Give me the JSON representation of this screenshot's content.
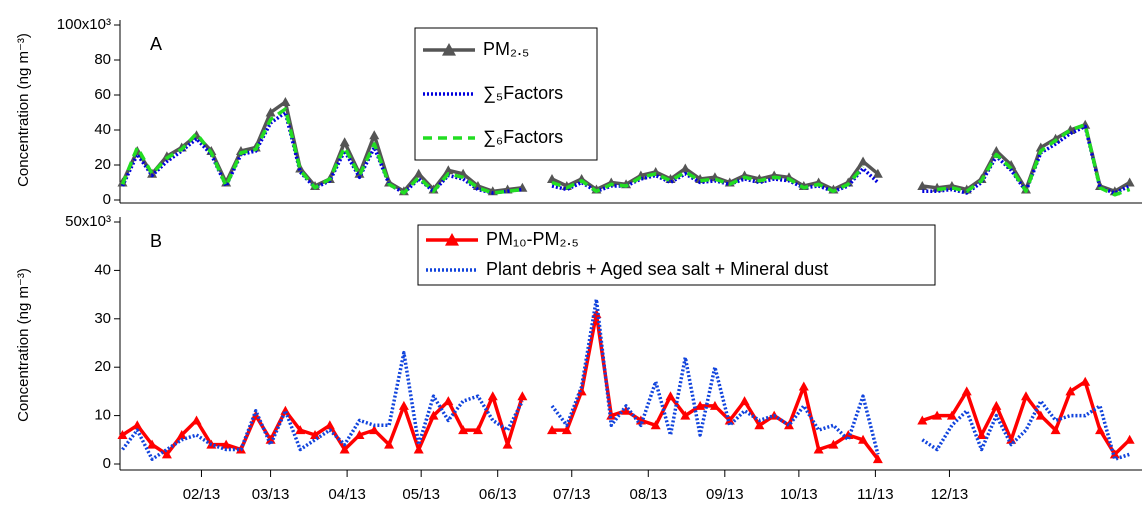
{
  "chart_data": [
    {
      "type": "line",
      "panel": "A",
      "y_label": "Concentration (ng m⁻³)",
      "x": [
        0,
        6,
        12,
        18,
        24,
        30,
        36,
        42,
        48,
        54,
        60,
        66,
        72,
        78,
        84,
        90,
        96,
        102,
        108,
        114,
        120,
        126,
        132,
        138,
        144,
        150,
        156,
        162,
        168,
        174,
        180,
        186,
        192,
        198,
        204,
        210,
        216,
        222,
        228,
        234,
        240,
        246,
        252,
        258,
        264,
        270,
        276,
        282,
        288,
        294,
        300,
        306,
        312,
        318,
        324,
        330,
        336,
        342,
        348,
        354,
        360,
        366,
        372,
        378,
        384,
        390,
        396,
        402,
        408
      ],
      "xlim": [
        -1,
        413
      ],
      "ylim": [
        0,
        100
      ],
      "yticks": [
        0,
        20,
        40,
        60,
        80,
        {
          "value": 100,
          "label": "100x10³"
        }
      ],
      "series": [
        {
          "name": "PM₂.₅",
          "color": "#555555",
          "style": "solid-triangle",
          "values": [
            10,
            28,
            15,
            25,
            30,
            37,
            28,
            10,
            28,
            30,
            50,
            56,
            18,
            8,
            12,
            33,
            15,
            37,
            10,
            5,
            15,
            6,
            17,
            15,
            8,
            5,
            6,
            7,
            null,
            12,
            8,
            12,
            6,
            10,
            9,
            14,
            16,
            12,
            18,
            12,
            13,
            10,
            14,
            12,
            14,
            13,
            8,
            10,
            6,
            10,
            22,
            15,
            null,
            null,
            8,
            7,
            8,
            6,
            12,
            28,
            20,
            6,
            30,
            35,
            40,
            43,
            8,
            5,
            10
          ]
        },
        {
          "name": "∑₅Factors",
          "color": "#0000dd",
          "style": "dotted",
          "values": [
            8,
            26,
            14,
            22,
            28,
            35,
            26,
            8,
            26,
            28,
            44,
            50,
            16,
            7,
            11,
            28,
            13,
            30,
            9,
            4,
            12,
            5,
            14,
            12,
            6,
            4,
            5,
            6,
            null,
            8,
            6,
            10,
            5,
            8,
            8,
            12,
            14,
            10,
            15,
            10,
            11,
            9,
            12,
            10,
            12,
            11,
            7,
            8,
            5,
            8,
            18,
            10,
            null,
            null,
            5,
            5,
            6,
            4,
            10,
            25,
            17,
            5,
            27,
            32,
            38,
            42,
            7,
            4,
            8
          ]
        },
        {
          "name": "∑₆Factors",
          "color": "#22dd22",
          "style": "dashed",
          "values": [
            9,
            30,
            15,
            24,
            29,
            38,
            27,
            8,
            27,
            29,
            46,
            52,
            17,
            7,
            12,
            30,
            14,
            32,
            9,
            4,
            13,
            5,
            15,
            13,
            7,
            4,
            5,
            6,
            null,
            10,
            7,
            11,
            5,
            9,
            8,
            13,
            15,
            11,
            16,
            11,
            12,
            9,
            13,
            11,
            13,
            12,
            7,
            9,
            5,
            9,
            19,
            null,
            null,
            null,
            null,
            6,
            7,
            5,
            11,
            26,
            18,
            5,
            28,
            34,
            40,
            43,
            7,
            3,
            6
          ]
        }
      ]
    },
    {
      "type": "line",
      "panel": "B",
      "y_label": "Concentration (ng m⁻³)",
      "x": [
        0,
        6,
        12,
        18,
        24,
        30,
        36,
        42,
        48,
        54,
        60,
        66,
        72,
        78,
        84,
        90,
        96,
        102,
        108,
        114,
        120,
        126,
        132,
        138,
        144,
        150,
        156,
        162,
        168,
        174,
        180,
        186,
        192,
        198,
        204,
        210,
        216,
        222,
        228,
        234,
        240,
        246,
        252,
        258,
        264,
        270,
        276,
        282,
        288,
        294,
        300,
        306,
        312,
        318,
        324,
        330,
        336,
        342,
        348,
        354,
        360,
        366,
        372,
        378,
        384,
        390,
        396,
        402,
        408
      ],
      "xlim": [
        -1,
        413
      ],
      "ylim": [
        0,
        50
      ],
      "yticks": [
        0,
        10,
        20,
        30,
        40,
        {
          "value": 50,
          "label": "50x10³"
        }
      ],
      "xticks": [
        {
          "value": 32,
          "label": "02/13"
        },
        {
          "value": 60,
          "label": "03/13"
        },
        {
          "value": 91,
          "label": "04/13"
        },
        {
          "value": 121,
          "label": "05/13"
        },
        {
          "value": 152,
          "label": "06/13"
        },
        {
          "value": 182,
          "label": "07/13"
        },
        {
          "value": 213,
          "label": "08/13"
        },
        {
          "value": 244,
          "label": "09/13"
        },
        {
          "value": 274,
          "label": "10/13"
        },
        {
          "value": 305,
          "label": "11/13"
        },
        {
          "value": 335,
          "label": "12/13"
        }
      ],
      "series": [
        {
          "name": "PM₁₀-PM₂.₅",
          "color": "#ff0000",
          "style": "solid-triangle",
          "values": [
            6,
            8,
            4,
            2,
            6,
            9,
            4,
            4,
            3,
            10,
            5,
            11,
            7,
            6,
            8,
            3,
            6,
            7,
            4,
            12,
            3,
            10,
            13,
            7,
            7,
            14,
            4,
            14,
            null,
            7,
            7,
            15,
            31,
            10,
            11,
            9,
            8,
            14,
            10,
            12,
            12,
            9,
            13,
            8,
            10,
            8,
            16,
            3,
            4,
            6,
            5,
            1,
            null,
            null,
            9,
            10,
            10,
            15,
            6,
            12,
            5,
            14,
            10,
            7,
            15,
            17,
            7,
            2,
            5
          ]
        },
        {
          "name": "Plant debris + Aged sea salt + Mineral dust",
          "color": "#1144dd",
          "style": "dotted",
          "values": [
            3,
            7,
            1,
            3,
            5,
            6,
            4,
            3,
            3,
            11,
            4,
            11,
            3,
            5,
            7,
            4,
            9,
            8,
            8,
            23,
            4,
            14,
            9,
            13,
            14,
            9,
            7,
            13,
            null,
            12,
            8,
            16,
            34,
            8,
            12,
            8,
            17,
            6,
            22,
            6,
            20,
            8,
            11,
            9,
            10,
            8,
            12,
            7,
            8,
            5,
            14,
            2,
            null,
            null,
            5,
            3,
            8,
            11,
            3,
            10,
            4,
            7,
            13,
            9,
            10,
            10,
            12,
            1,
            2
          ]
        }
      ]
    }
  ]
}
